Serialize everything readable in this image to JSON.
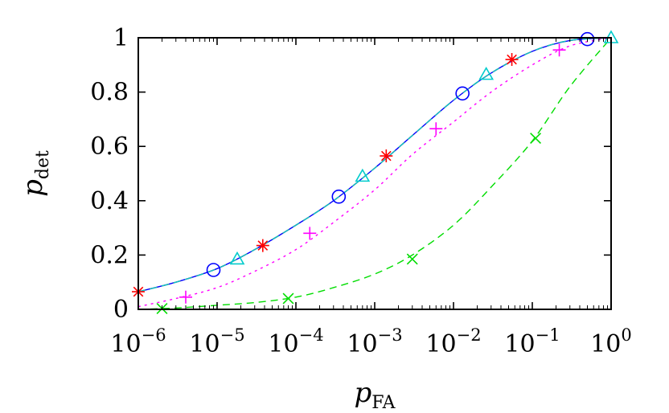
{
  "chart_data": {
    "type": "line",
    "xlabel": {
      "base": "p",
      "sub": "FA"
    },
    "ylabel": {
      "base": "p",
      "sub": "det"
    },
    "xscale": "log",
    "xlim": [
      1e-06,
      1
    ],
    "ylim": [
      0,
      1
    ],
    "grid": false,
    "legend": "none",
    "xtick_labels": [
      {
        "value": 1e-06,
        "base": "10",
        "exp": "−6"
      },
      {
        "value": 1e-05,
        "base": "10",
        "exp": "−5"
      },
      {
        "value": 0.0001,
        "base": "10",
        "exp": "−4"
      },
      {
        "value": 0.001,
        "base": "10",
        "exp": "−3"
      },
      {
        "value": 0.01,
        "base": "10",
        "exp": "−2"
      },
      {
        "value": 0.1,
        "base": "10",
        "exp": "−1"
      },
      {
        "value": 1,
        "base": "10",
        "exp": "0"
      }
    ],
    "ytick_labels": [
      {
        "value": 0,
        "label": "0"
      },
      {
        "value": 0.2,
        "label": "0.2"
      },
      {
        "value": 0.4,
        "label": "0.4"
      },
      {
        "value": 0.6,
        "label": "0.6"
      },
      {
        "value": 0.8,
        "label": "0.8"
      },
      {
        "value": 1,
        "label": "1"
      }
    ],
    "series": [
      {
        "color": "#0000ff",
        "dash": "solid",
        "marker": "circle",
        "marker_color": "#0000ff",
        "x": [
          1e-06,
          3e-06,
          1e-05,
          3e-05,
          0.0001,
          0.0003,
          0.001,
          0.003,
          0.01,
          0.03,
          0.1,
          0.3,
          1
        ],
        "y": [
          0.065,
          0.1,
          0.15,
          0.22,
          0.31,
          0.4,
          0.52,
          0.64,
          0.77,
          0.87,
          0.95,
          0.99,
          1.0
        ],
        "marker_x": [
          9e-06,
          0.00035,
          0.013,
          0.5
        ],
        "marker_y": [
          0.145,
          0.415,
          0.795,
          0.995
        ]
      },
      {
        "color": "#ff0000",
        "dash": "dash",
        "marker": "asterisk",
        "marker_color": "#ff0000",
        "x": [
          1e-06,
          3e-06,
          1e-05,
          3e-05,
          0.0001,
          0.0003,
          0.001,
          0.003,
          0.01,
          0.03,
          0.1,
          0.3,
          1
        ],
        "y": [
          0.065,
          0.1,
          0.15,
          0.22,
          0.31,
          0.4,
          0.52,
          0.64,
          0.77,
          0.87,
          0.95,
          0.99,
          1.0
        ],
        "marker_x": [
          1e-06,
          3.8e-05,
          0.0014,
          0.055
        ],
        "marker_y": [
          0.065,
          0.235,
          0.565,
          0.92
        ]
      },
      {
        "color": "#00cccc",
        "dash": "dash",
        "marker": "triangle",
        "marker_color": "#00cccc",
        "x": [
          1e-06,
          3e-06,
          1e-05,
          3e-05,
          0.0001,
          0.0003,
          0.001,
          0.003,
          0.01,
          0.03,
          0.1,
          0.3,
          1
        ],
        "y": [
          0.065,
          0.1,
          0.15,
          0.22,
          0.31,
          0.4,
          0.52,
          0.64,
          0.77,
          0.87,
          0.95,
          0.99,
          1.0
        ],
        "marker_x": [
          1.8e-05,
          0.0007,
          0.026,
          1
        ],
        "marker_y": [
          0.185,
          0.49,
          0.865,
          1.0
        ]
      },
      {
        "color": "#ff00ff",
        "dash": "dot",
        "marker": "plus",
        "marker_color": "#ff00ff",
        "x": [
          1e-06,
          3e-06,
          1e-05,
          3e-05,
          0.0001,
          0.0003,
          0.001,
          0.003,
          0.01,
          0.03,
          0.1,
          0.3,
          1
        ],
        "y": [
          0.01,
          0.04,
          0.08,
          0.14,
          0.22,
          0.32,
          0.44,
          0.57,
          0.69,
          0.8,
          0.9,
          0.97,
          1.0
        ],
        "marker_x": [
          4e-06,
          0.00015,
          0.006,
          0.22
        ],
        "marker_y": [
          0.045,
          0.28,
          0.665,
          0.955
        ]
      },
      {
        "color": "#00dd00",
        "dash": "dash",
        "marker": "cross",
        "marker_color": "#00dd00",
        "x": [
          1e-06,
          3e-06,
          1e-05,
          3e-05,
          0.0001,
          0.0003,
          0.001,
          0.003,
          0.01,
          0.03,
          0.1,
          0.3,
          1
        ],
        "y": [
          0.0,
          0.005,
          0.015,
          0.025,
          0.045,
          0.08,
          0.13,
          0.2,
          0.31,
          0.45,
          0.62,
          0.82,
          1.0
        ],
        "marker_x": [
          2e-06,
          8e-05,
          0.003,
          0.11
        ],
        "marker_y": [
          0.003,
          0.04,
          0.185,
          0.63
        ]
      }
    ]
  }
}
